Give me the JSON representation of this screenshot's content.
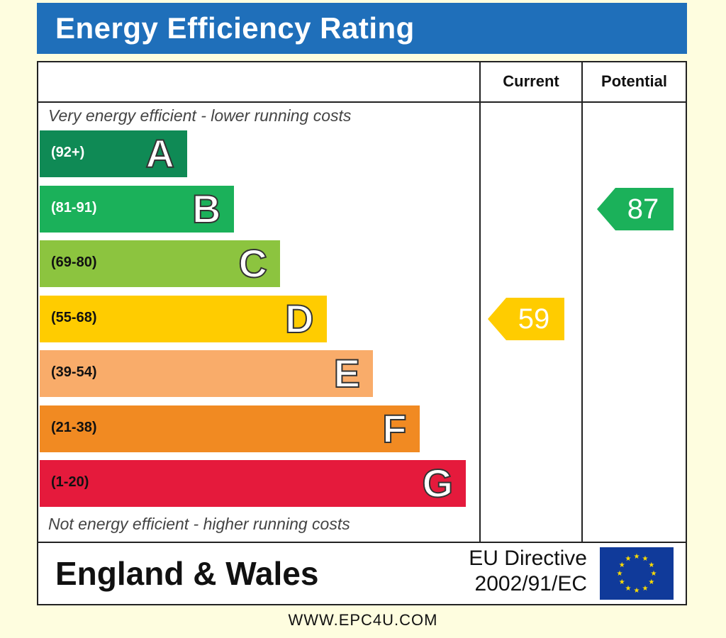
{
  "title": "Energy Efficiency Rating",
  "headers": {
    "current": "Current",
    "potential": "Potential"
  },
  "notes": {
    "top": "Very energy efficient - lower running costs",
    "bottom": "Not energy efficient - higher running costs"
  },
  "footer": {
    "region": "England & Wales",
    "directive_line1": "EU Directive",
    "directive_line2": "2002/91/EC",
    "url": "WWW.EPC4U.COM"
  },
  "chart_data": {
    "type": "bar",
    "title": "Energy Efficiency Rating",
    "bands": [
      {
        "letter": "A",
        "range": "(92+)",
        "color": "#0f8a55",
        "range_text_color": "#ffffff"
      },
      {
        "letter": "B",
        "range": "(81-91)",
        "color": "#1bb15a",
        "range_text_color": "#ffffff"
      },
      {
        "letter": "C",
        "range": "(69-80)",
        "color": "#8cc43f",
        "range_text_color": "#111111"
      },
      {
        "letter": "D",
        "range": "(55-68)",
        "color": "#ffcc00",
        "range_text_color": "#111111"
      },
      {
        "letter": "E",
        "range": "(39-54)",
        "color": "#f9ac6a",
        "range_text_color": "#111111"
      },
      {
        "letter": "F",
        "range": "(21-38)",
        "color": "#f18a22",
        "range_text_color": "#111111"
      },
      {
        "letter": "G",
        "range": "(1-20)",
        "color": "#e51a3c",
        "range_text_color": "#111111"
      }
    ],
    "ratings": [
      {
        "column": "Current",
        "value": "59",
        "band": "D",
        "color": "#ffcc00"
      },
      {
        "column": "Potential",
        "value": "87",
        "band": "B",
        "color": "#1bb15a"
      }
    ]
  }
}
